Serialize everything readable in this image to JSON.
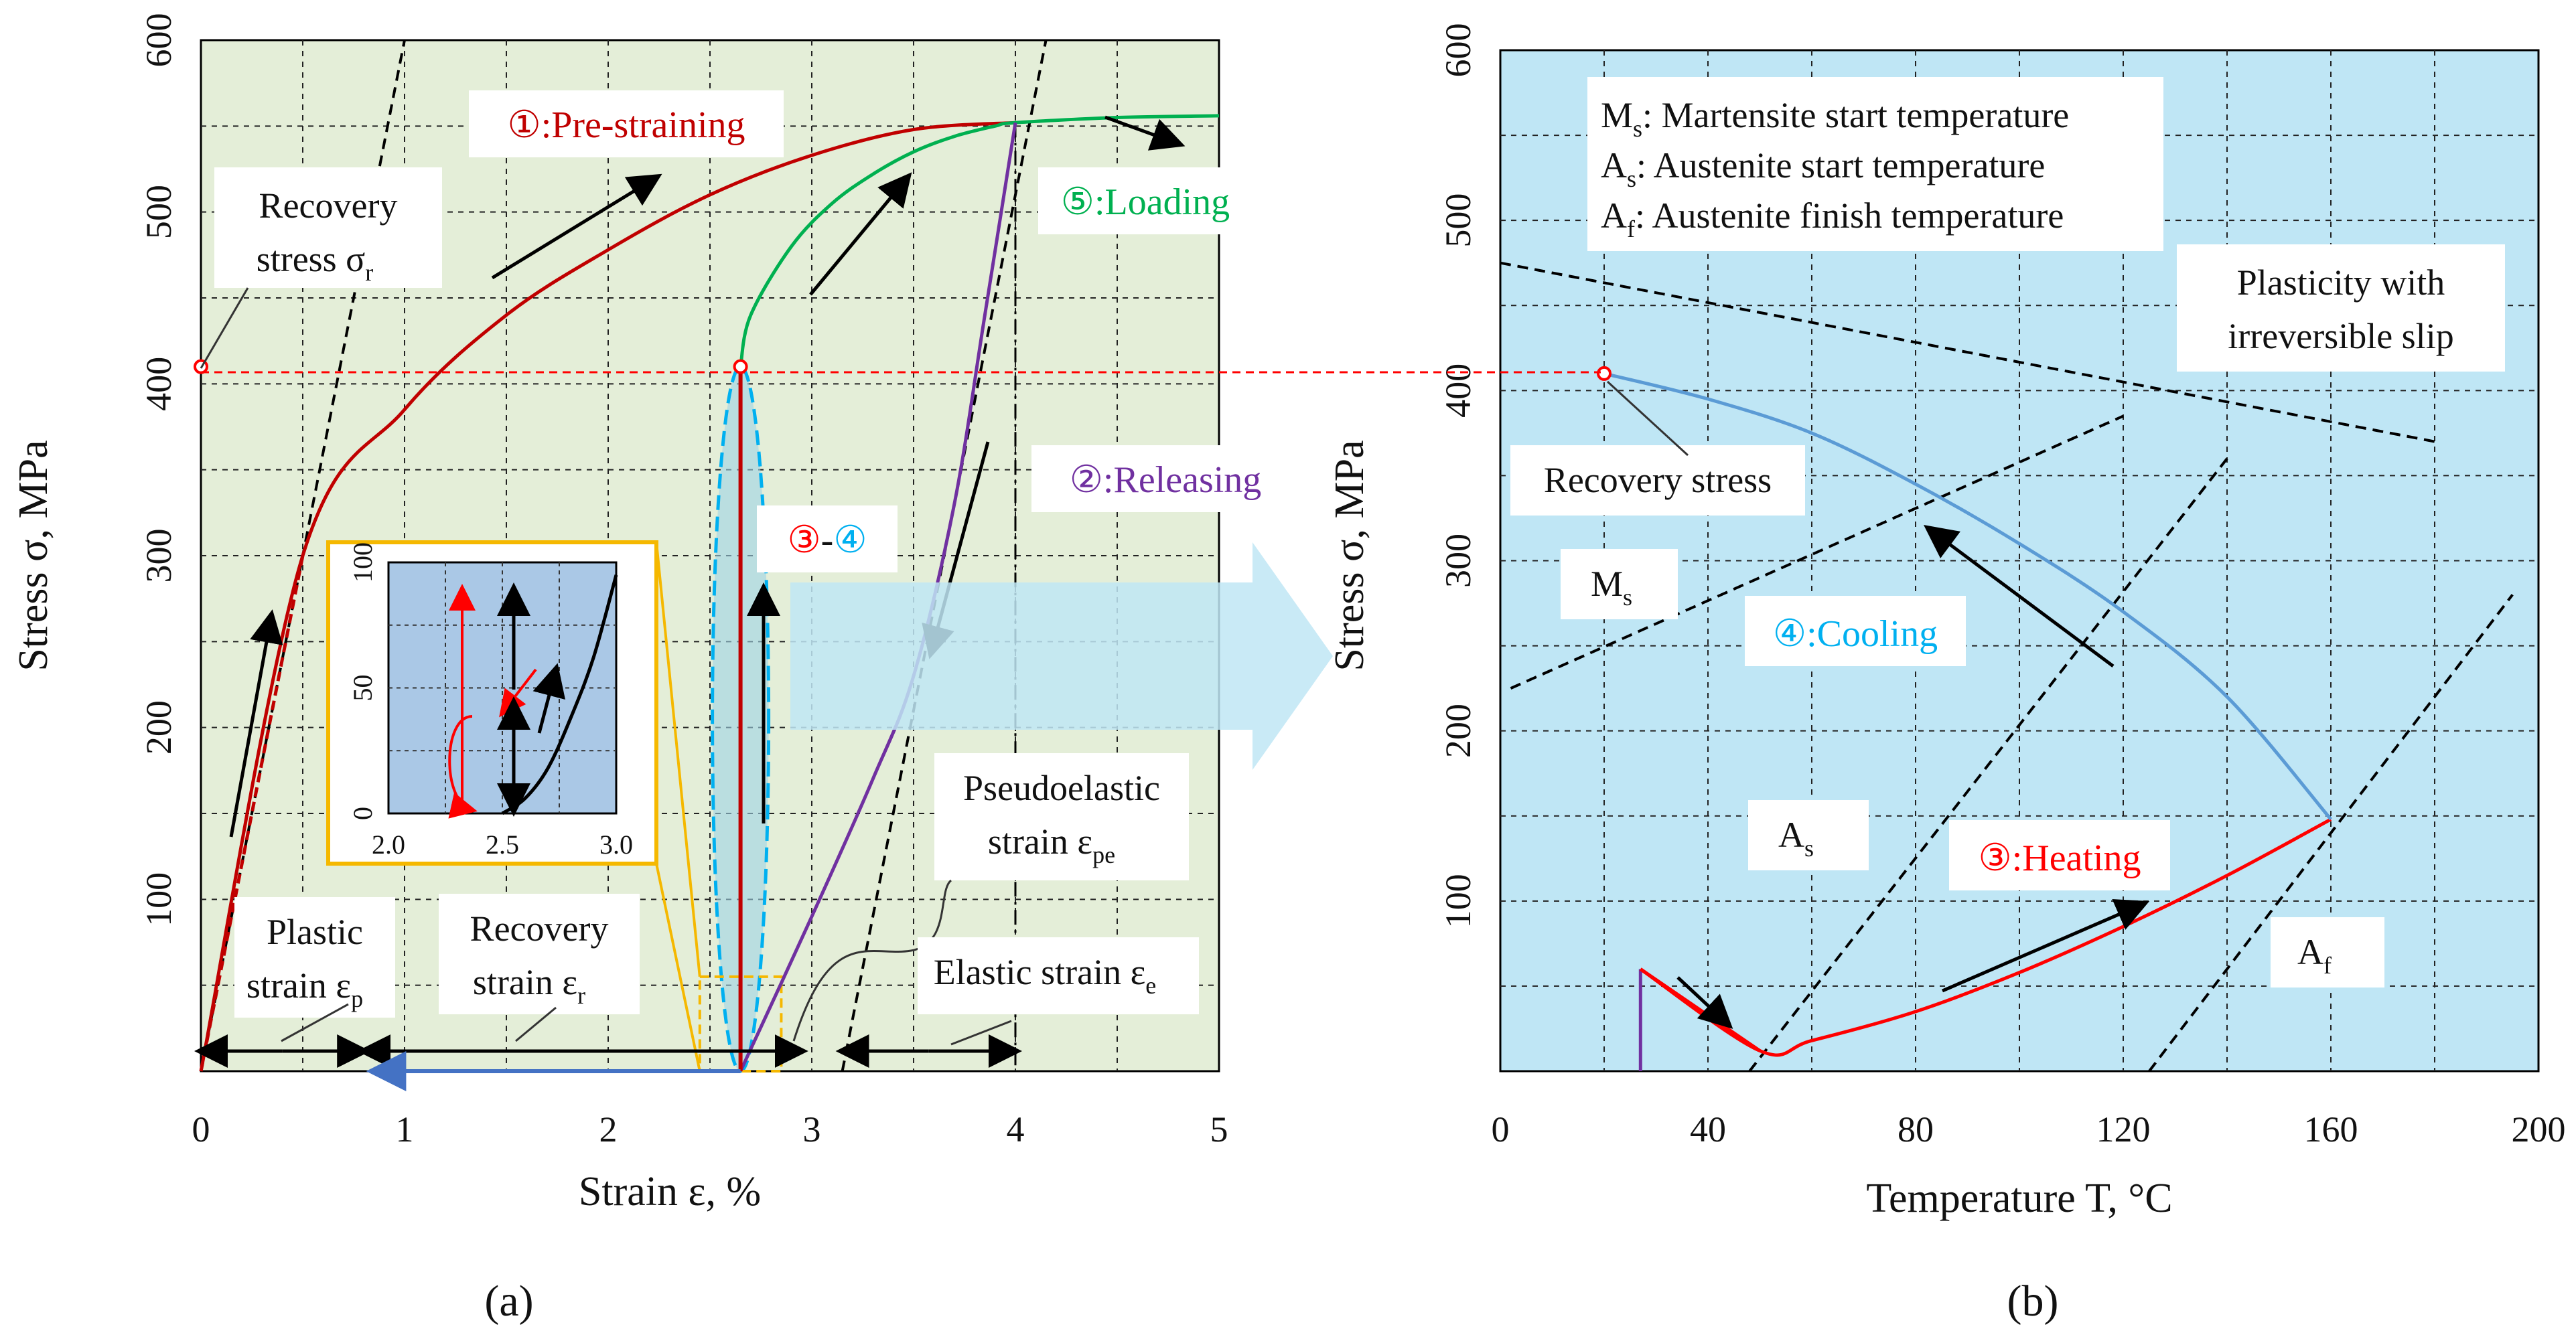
{
  "figure": {
    "panel_a_label": "(a)",
    "panel_b_label": "(b)"
  },
  "colors": {
    "panel_a_bg": "#e4eed8",
    "panel_b_bg": "#bfe6f5",
    "inset_bg": "#aac8e6",
    "prestrain": "#c00000",
    "loading": "#00b050",
    "releasing": "#7030a0",
    "cooling": "#5b9bd5",
    "heating": "#ff0000",
    "arrow_band": "#bfe6f5"
  },
  "chart_data": [
    {
      "type": "line",
      "panel": "a",
      "xlabel": "Strain ε, %",
      "ylabel": "Stress σ, MPa",
      "xlim": [
        0,
        5
      ],
      "ylim": [
        0,
        600
      ],
      "xticks": [
        "0",
        "1",
        "2",
        "3",
        "4",
        "5"
      ],
      "yticks": [
        "100",
        "200",
        "300",
        "400",
        "500",
        "600"
      ],
      "grid": true,
      "series": [
        {
          "name": "Pre-straining",
          "label": "①:Pre-straining",
          "color": "#c00000",
          "x": [
            0,
            0.5,
            1.0,
            1.5,
            2.0,
            2.5,
            3.0,
            3.5,
            4.0
          ],
          "y": [
            0,
            300,
            385,
            440,
            478,
            510,
            533,
            548,
            552
          ]
        },
        {
          "name": "Loading",
          "label": "⑤:Loading",
          "color": "#00b050",
          "x": [
            2.65,
            2.7,
            2.9,
            3.1,
            3.3,
            3.5,
            3.7,
            3.9,
            4.0,
            4.5,
            5.0
          ],
          "y": [
            410,
            440,
            480,
            505,
            522,
            535,
            544,
            550,
            552,
            555,
            556
          ]
        },
        {
          "name": "Releasing",
          "label": "②:Releasing",
          "color": "#7030a0",
          "x": [
            2.65,
            3.0,
            3.3,
            3.5,
            3.7,
            3.85,
            4.0
          ],
          "y": [
            0,
            90,
            170,
            230,
            330,
            440,
            552
          ]
        },
        {
          "name": "Recovery stress generation",
          "label": "③-④",
          "color": "#c00000",
          "x": [
            2.65,
            2.65
          ],
          "y": [
            0,
            410
          ]
        }
      ],
      "guides": {
        "elastic_line_a": {
          "x": [
            0,
            1.0
          ],
          "y": [
            0,
            600
          ]
        },
        "elastic_line_b": {
          "x": [
            3.15,
            4.15
          ],
          "y": [
            0,
            600
          ]
        },
        "strain_4_marker": {
          "x": 4.0
        },
        "recovery_stress_level": 410
      },
      "labels": {
        "recovery_stress_line1": "Recovery",
        "recovery_stress_line2": "stress σ",
        "recovery_stress_sub": "r",
        "plastic_line1": "Plastic",
        "plastic_line2": "strain ε",
        "plastic_sub": "p",
        "recovery_strain_line1": "Recovery",
        "recovery_strain_line2": "strain ε",
        "recovery_strain_sub": "r",
        "pseudo_line1": "Pseudoelastic",
        "pseudo_line2": "strain ε",
        "pseudo_sub": "pe",
        "elastic_text": "Elastic strain ε",
        "elastic_sub": "e",
        "step34_a": "③",
        "step34_dash": "-",
        "step34_b": "④"
      },
      "inset": {
        "xlim": [
          2.0,
          3.0
        ],
        "ylim": [
          0,
          100
        ],
        "xticks": [
          "2.0",
          "2.5",
          "3.0"
        ],
        "yticks": [
          "0",
          "50",
          "100"
        ],
        "curve": {
          "x": [
            2.5,
            2.6,
            2.7,
            2.8,
            2.9,
            3.0
          ],
          "y": [
            0,
            6,
            18,
            38,
            62,
            95
          ]
        }
      }
    },
    {
      "type": "line",
      "panel": "b",
      "xlabel": "Temperature T, °C",
      "ylabel": "Stress σ, MPa",
      "xlim": [
        0,
        200
      ],
      "ylim": [
        0,
        600
      ],
      "xticks": [
        "0",
        "40",
        "80",
        "120",
        "160",
        "200"
      ],
      "yticks": [
        "100",
        "200",
        "300",
        "400",
        "500",
        "600"
      ],
      "grid": true,
      "series": [
        {
          "name": "Heating",
          "label": "③:Heating",
          "color": "#ff0000",
          "x": [
            27,
            50,
            60,
            80,
            100,
            120,
            140,
            160
          ],
          "y": [
            60,
            12,
            18,
            35,
            58,
            85,
            115,
            148
          ]
        },
        {
          "name": "Cooling",
          "label": "④:Cooling",
          "color": "#5b9bd5",
          "x": [
            20,
            40,
            60,
            80,
            100,
            120,
            140,
            160
          ],
          "y": [
            410,
            395,
            375,
            345,
            310,
            270,
            220,
            148
          ]
        },
        {
          "name": "Initial",
          "color": "#7030a0",
          "x": [
            27,
            27
          ],
          "y": [
            0,
            60
          ]
        }
      ],
      "guides": {
        "plasticity_line": {
          "x": [
            0,
            180
          ],
          "y": [
            475,
            370
          ]
        },
        "Ms_line": {
          "x": [
            2,
            120
          ],
          "y": [
            225,
            385
          ]
        },
        "As_line": {
          "x": [
            48,
            140
          ],
          "y": [
            0,
            360
          ]
        },
        "Af_line": {
          "x": [
            125,
            195
          ],
          "y": [
            0,
            280
          ]
        },
        "recovery_stress_point": {
          "x": 20,
          "y": 410
        }
      },
      "labels": {
        "legend_ms": "M",
        "legend_ms_sub": "s",
        "legend_ms_text": ": Martensite start temperature",
        "legend_as": "A",
        "legend_as_sub": "s",
        "legend_as_text": ":  Austenite start temperature",
        "legend_af": "A",
        "legend_af_sub": "f",
        "legend_af_text": ":  Austenite finish temperature",
        "plasticity_line1": "Plasticity with",
        "plasticity_line2": "irreversible slip",
        "recovery_stress": "Recovery stress",
        "ms_line_label": "M",
        "ms_line_sub": "s",
        "as_line_label": "A",
        "as_line_sub": "s",
        "af_line_label": "A",
        "af_line_sub": "f"
      }
    }
  ]
}
